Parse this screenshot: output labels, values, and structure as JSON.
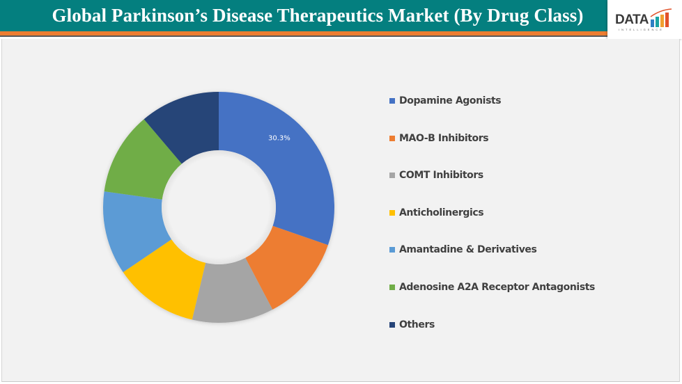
{
  "header": {
    "title": "Global Parkinson’s Disease Therapeutics Market (By Drug Class)",
    "logo_text": "DATA",
    "logo_subtext": "INTELLIGENCE"
  },
  "colors": {
    "header_bg": "#047f7f",
    "accent_bar": "#ed7d31",
    "panel_bg": "#f2f2f2"
  },
  "chart_data": {
    "type": "pie",
    "subtype": "donut",
    "title": "Global Parkinson’s Disease Therapeutics Market (By Drug Class)",
    "categories": [
      "Dopamine Agonists",
      "MAO-B Inhibitors",
      "COMT Inhibitors",
      "Anticholinergics",
      "Amantadine & Derivatives",
      "Adenosine A2A Receptor Antagonists",
      "Others"
    ],
    "values": [
      30.3,
      12.0,
      11.4,
      11.8,
      11.7,
      11.6,
      11.2
    ],
    "unit": "%",
    "colors": [
      "#4472c4",
      "#ed7d31",
      "#a5a5a5",
      "#ffc000",
      "#5b9bd5",
      "#70ad47",
      "#264478"
    ],
    "data_labels": [
      {
        "category": "Dopamine Agonists",
        "text": "30.3%"
      }
    ],
    "legend_position": "right",
    "start_angle": 0,
    "direction": "clockwise"
  },
  "legend": {
    "items": [
      {
        "label": "Dopamine Agonists",
        "color": "#4472c4"
      },
      {
        "label": "MAO-B Inhibitors",
        "color": "#ed7d31"
      },
      {
        "label": "COMT Inhibitors",
        "color": "#a5a5a5"
      },
      {
        "label": "Anticholinergics",
        "color": "#ffc000"
      },
      {
        "label": "Amantadine & Derivatives",
        "color": "#5b9bd5"
      },
      {
        "label": "Adenosine A2A Receptor Antagonists",
        "color": "#70ad47"
      },
      {
        "label": "Others",
        "color": "#264478"
      }
    ]
  }
}
